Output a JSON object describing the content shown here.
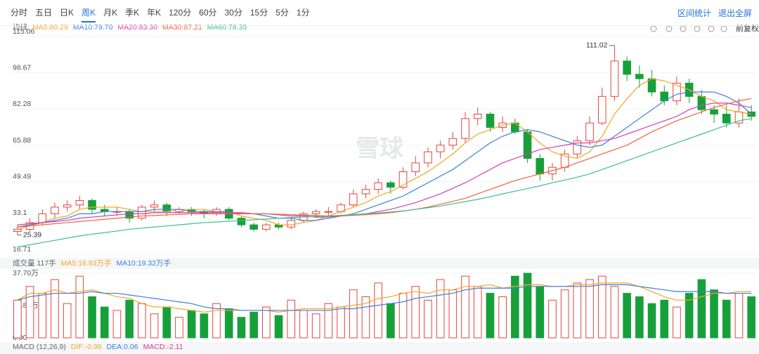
{
  "toolbar": {
    "tabs": [
      "分时",
      "五日",
      "日K",
      "周K",
      "月K",
      "季K",
      "年K",
      "120分",
      "60分",
      "30分",
      "15分",
      "5分",
      "1分"
    ],
    "selected_tab": 3,
    "links": [
      "区间统计",
      "退出全屏"
    ],
    "adjust": "前复权"
  },
  "watermark": "雪球",
  "macd_row": {
    "title": "MACD (12,26,9)",
    "items": [
      {
        "text": "DIF:-0.99",
        "color": "#f5a623"
      },
      {
        "text": "DEA:0.06",
        "color": "#3d7fd9"
      },
      {
        "text": "MACD:-2.11",
        "color": "#d63e8a"
      }
    ]
  },
  "chart_data": [
    {
      "type": "candlestick",
      "legend_title": "均线",
      "up_color": "#e2463c",
      "down_color": "#17a03a",
      "open": [
        27,
        28,
        31,
        35,
        38,
        39,
        41,
        37,
        36,
        36,
        33,
        38,
        39,
        36,
        37,
        36,
        35,
        37,
        33,
        30,
        28,
        30,
        29,
        32,
        35,
        36,
        36,
        39,
        44,
        46,
        49,
        47,
        54,
        58,
        63,
        66,
        69,
        78,
        80,
        74,
        76,
        72,
        60,
        53,
        56,
        62,
        68,
        76,
        88,
        104,
        98,
        96,
        90,
        86,
        94,
        88,
        82,
        80,
        76,
        81
      ],
      "high": [
        30,
        33,
        37,
        40,
        41,
        43,
        42,
        39,
        38,
        37,
        39,
        41,
        40,
        38,
        38,
        37,
        38,
        38,
        34,
        31,
        31,
        31,
        33,
        36,
        37,
        38,
        40,
        46,
        48,
        51,
        50,
        56,
        61,
        65,
        68,
        72,
        81,
        83,
        81,
        79,
        78,
        73,
        62,
        58,
        64,
        70,
        79,
        92,
        111.02,
        106,
        102,
        100,
        93,
        97,
        96,
        91,
        84,
        84,
        87,
        84
      ],
      "low": [
        25.39,
        27,
        30,
        33,
        36,
        37,
        35,
        34,
        34,
        31,
        32,
        36,
        34,
        35,
        34,
        33,
        34,
        32,
        29,
        27,
        27,
        28,
        28,
        31,
        33,
        34,
        35,
        38,
        42,
        44,
        44,
        46,
        52,
        56,
        60,
        64,
        67,
        75,
        72,
        72,
        71,
        58,
        50,
        50,
        54,
        60,
        66,
        75,
        86,
        95,
        92,
        88,
        84,
        84,
        85,
        80,
        76,
        74,
        74,
        77
      ],
      "close": [
        28,
        31,
        35,
        38,
        39,
        41,
        37,
        36,
        36,
        33,
        38,
        39,
        36,
        37,
        36,
        35,
        37,
        33,
        30,
        28,
        30,
        29,
        32,
        35,
        36,
        36,
        39,
        44,
        46,
        49,
        47,
        54,
        58,
        63,
        66,
        69,
        78,
        80,
        74,
        76,
        72,
        60,
        53,
        56,
        62,
        68,
        76,
        88,
        104,
        98,
        96,
        90,
        86,
        94,
        88,
        82,
        80,
        76,
        81,
        79
      ],
      "series": [
        {
          "name": "MA5:80.29",
          "color": "#f5a623",
          "values": [
            28,
            29.5,
            31,
            33,
            34,
            37,
            38,
            38,
            38,
            37,
            36,
            36,
            36,
            37,
            37,
            37,
            36,
            36,
            34,
            33,
            32,
            30,
            30,
            31,
            32,
            34,
            36,
            38,
            40,
            43,
            45,
            48,
            51,
            54,
            58,
            62,
            67,
            71,
            73,
            75,
            76,
            72,
            67,
            63,
            61,
            60,
            63,
            70,
            80,
            87,
            93,
            96,
            95,
            93,
            91,
            88,
            86,
            82,
            81,
            80
          ]
        },
        {
          "name": "MA10:79.70",
          "color": "#3d7fd9",
          "values": [
            29,
            30,
            31,
            32,
            33,
            35,
            35,
            36,
            36,
            36,
            36,
            37,
            37,
            37,
            36,
            36,
            36,
            36,
            35,
            35,
            34,
            33,
            33,
            32,
            32,
            33,
            34,
            35,
            37,
            39,
            41,
            43,
            46,
            49,
            52,
            55,
            59,
            63,
            67,
            70,
            72,
            73,
            72,
            70,
            68,
            66,
            65,
            66,
            70,
            74,
            78,
            82,
            86,
            89,
            90,
            90,
            90,
            88,
            85,
            80
          ]
        },
        {
          "name": "MA20:83.30",
          "color": "#d63eb5",
          "values": [
            30,
            30.5,
            31,
            31.5,
            32,
            33,
            33.5,
            34,
            34.5,
            35,
            35,
            35.5,
            35.5,
            35.5,
            35.5,
            35.5,
            35.5,
            35.5,
            35.5,
            35,
            35,
            34.5,
            34,
            34,
            33.5,
            33.5,
            34,
            34.5,
            35,
            36,
            37,
            38.5,
            40,
            42,
            44,
            46.5,
            49,
            52,
            55,
            58,
            60,
            62,
            64,
            65,
            66,
            67,
            67,
            68,
            69,
            71,
            73,
            75,
            77,
            79,
            82,
            84,
            85,
            85,
            84,
            83
          ]
        },
        {
          "name": "MA30:87.21",
          "color": "#f0643c",
          "values": [
            29,
            29.5,
            30,
            30.5,
            31,
            31.5,
            32,
            32.5,
            33,
            33.5,
            34,
            34.2,
            34.5,
            34.7,
            35,
            35,
            35,
            35,
            35,
            35,
            35,
            34.8,
            34.6,
            34.4,
            34.2,
            34,
            34,
            34.3,
            34.6,
            35,
            35.5,
            36.2,
            37,
            38,
            39.3,
            40.6,
            42,
            44,
            46,
            48,
            50,
            51.5,
            53,
            54.5,
            56,
            58,
            60,
            62,
            64,
            66,
            69,
            72,
            74.5,
            77,
            79,
            81,
            83,
            84.5,
            86,
            87
          ]
        },
        {
          "name": "MA60:78.35",
          "color": "#3cbf8e",
          "values": [
            20,
            21,
            22,
            23,
            24,
            25,
            25.8,
            26.5,
            27.2,
            28,
            28.5,
            29,
            29.5,
            30,
            30.5,
            31,
            31.3,
            31.6,
            32,
            32.3,
            32.6,
            33,
            33.3,
            33.5,
            33.8,
            34,
            34.3,
            34.6,
            35,
            35.4,
            35.8,
            36.3,
            37,
            37.7,
            38.5,
            39.5,
            40.5,
            41.5,
            42.7,
            44,
            45.2,
            46.4,
            47.6,
            49,
            50.2,
            51.5,
            53,
            55,
            57,
            59,
            61,
            63,
            65,
            67,
            69,
            71,
            73,
            75,
            77,
            78
          ]
        }
      ],
      "ylim": [
        16.71,
        115.06
      ],
      "yticks": [
        16.71,
        33.1,
        49.49,
        65.88,
        82.28,
        98.67,
        115.06
      ],
      "grid": true,
      "annotations": [
        {
          "label": "111.02",
          "value": 111.02
        },
        {
          "label": "25.39",
          "value": 25.39
        }
      ]
    },
    {
      "type": "bar",
      "title": "成交量 117手",
      "values": [
        22,
        30,
        26,
        34,
        20,
        36,
        24,
        18,
        16,
        22,
        20,
        14,
        18,
        12,
        16,
        14,
        20,
        17,
        12,
        15,
        18,
        13,
        22,
        16,
        14,
        20,
        18,
        28,
        24,
        32,
        20,
        26,
        30,
        22,
        34,
        28,
        36,
        30,
        26,
        24,
        36,
        37.7,
        30,
        22,
        28,
        32,
        34,
        36,
        30,
        26,
        24,
        20,
        22,
        18,
        26,
        34,
        28,
        22,
        26,
        24
      ],
      "series": [
        {
          "name": "MA5:16.93万手",
          "color": "#f5a623",
          "values": [
            22,
            26,
            26,
            28,
            26,
            27,
            28,
            26,
            24,
            23,
            20,
            18,
            18,
            17,
            16,
            15,
            16,
            16,
            16,
            16,
            16,
            15,
            16,
            17,
            17,
            17,
            18,
            19,
            20,
            23,
            24,
            26,
            27,
            26,
            28,
            28,
            30,
            30,
            31,
            29,
            30,
            31,
            31,
            30,
            30,
            31,
            31,
            32,
            32,
            32,
            30,
            27,
            24,
            22,
            22,
            24,
            26,
            26,
            27,
            27
          ]
        },
        {
          "name": "MA10:19.32万手",
          "color": "#3d7fd9",
          "values": [
            22,
            24,
            25,
            26,
            26,
            26,
            27,
            26,
            26,
            25,
            24,
            23,
            22,
            21,
            20,
            18,
            17,
            17,
            16,
            16,
            16,
            16,
            16,
            16,
            16,
            16,
            17,
            17,
            18,
            19,
            20,
            21,
            23,
            24,
            25,
            26,
            28,
            29,
            29,
            29,
            29,
            30,
            30,
            30,
            30,
            30,
            30,
            31,
            31,
            31,
            30,
            29,
            28,
            27,
            27,
            27,
            27,
            26,
            26,
            26
          ]
        }
      ],
      "ylim": [
        0,
        37.7
      ],
      "yticks": [
        {
          "value": 0,
          "label": "0.00"
        },
        {
          "value": 18.85,
          "label": "18.85万"
        },
        {
          "value": 37.7,
          "label": "37.70万"
        }
      ]
    }
  ]
}
